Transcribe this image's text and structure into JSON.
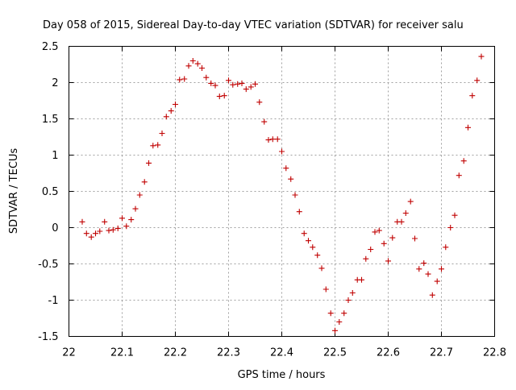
{
  "chart_data": {
    "type": "scatter",
    "title": "Day 058 of 2015, Sidereal Day-to-day VTEC variation (SDTVAR) for receiver salu",
    "xlabel": "GPS time / hours",
    "ylabel": "SDTVAR / TECUs",
    "xlim": [
      22,
      22.8
    ],
    "ylim": [
      -1.5,
      2.5
    ],
    "xticks": [
      "22",
      "22.1",
      "22.2",
      "22.3",
      "22.4",
      "22.5",
      "22.6",
      "22.7",
      "22.8"
    ],
    "yticks": [
      "2.5",
      "2",
      "1.5",
      "1",
      "0.5",
      "0",
      "-0.5",
      "-1",
      "-1.5"
    ],
    "grid": true,
    "marker": "+",
    "color": "#c00000",
    "series": [
      {
        "name": "SDTVAR",
        "x": [
          22.025,
          22.033,
          22.042,
          22.05,
          22.058,
          22.067,
          22.075,
          22.083,
          22.092,
          22.1,
          22.108,
          22.117,
          22.125,
          22.133,
          22.142,
          22.15,
          22.158,
          22.167,
          22.175,
          22.183,
          22.192,
          22.2,
          22.208,
          22.217,
          22.225,
          22.233,
          22.242,
          22.25,
          22.258,
          22.267,
          22.275,
          22.283,
          22.292,
          22.3,
          22.308,
          22.317,
          22.325,
          22.333,
          22.342,
          22.35,
          22.358,
          22.367,
          22.375,
          22.383,
          22.392,
          22.4,
          22.408,
          22.417,
          22.425,
          22.433,
          22.442,
          22.45,
          22.458,
          22.467,
          22.475,
          22.483,
          22.492,
          22.5,
          22.508,
          22.517,
          22.525,
          22.533,
          22.542,
          22.55,
          22.558,
          22.567,
          22.575,
          22.583,
          22.592,
          22.6,
          22.608,
          22.617,
          22.625,
          22.633,
          22.642,
          22.65,
          22.658,
          22.667,
          22.675,
          22.683,
          22.692,
          22.7,
          22.708,
          22.717,
          22.725,
          22.733,
          22.742,
          22.75,
          22.758,
          22.767,
          22.775
        ],
        "y": [
          0.08,
          -0.08,
          -0.13,
          -0.08,
          -0.05,
          0.08,
          -0.04,
          -0.03,
          -0.01,
          0.13,
          0.02,
          0.11,
          0.26,
          0.45,
          0.63,
          0.89,
          1.13,
          1.14,
          1.3,
          1.53,
          1.61,
          1.7,
          2.04,
          2.05,
          2.23,
          2.3,
          2.26,
          2.2,
          2.07,
          1.99,
          1.96,
          1.81,
          1.82,
          2.03,
          1.97,
          1.98,
          1.99,
          1.91,
          1.94,
          1.98,
          1.73,
          1.46,
          1.21,
          1.22,
          1.22,
          1.05,
          0.82,
          0.67,
          0.45,
          0.22,
          -0.08,
          -0.18,
          -0.27,
          -0.38,
          -0.56,
          -0.85,
          -1.18,
          -1.42,
          -1.3,
          -1.18,
          -1.0,
          -0.9,
          -0.72,
          -0.72,
          -0.43,
          -0.3,
          -0.06,
          -0.04,
          -0.22,
          -0.46,
          -0.14,
          0.08,
          0.08,
          0.2,
          0.36,
          -0.15,
          -0.57,
          -0.49,
          -0.64,
          -0.93,
          -0.74,
          -0.57,
          -0.27,
          0.0,
          0.17,
          0.72,
          0.92,
          1.38,
          1.82,
          2.03,
          2.36
        ]
      }
    ]
  }
}
